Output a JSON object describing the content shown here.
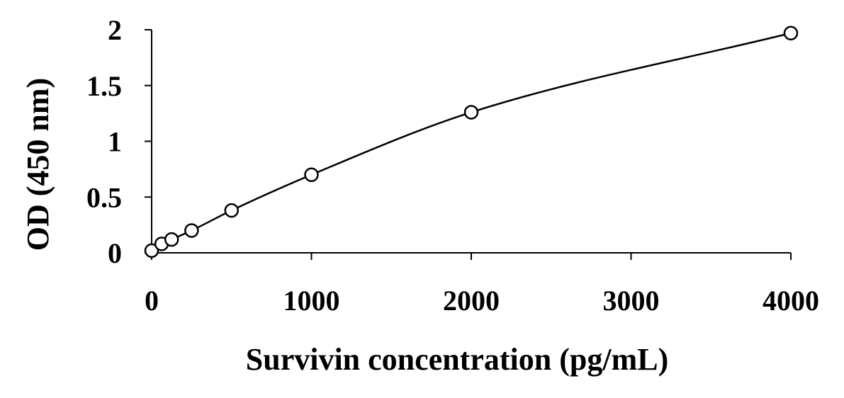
{
  "chart_data": {
    "type": "scatter",
    "title": "",
    "xlabel": "Survivin concentration (pg/mL)",
    "ylabel": "OD (450 nm)",
    "xlim": [
      0,
      4000
    ],
    "ylim": [
      0,
      2
    ],
    "x_ticks": [
      0,
      1000,
      2000,
      3000,
      4000
    ],
    "x_tick_labels": [
      "0",
      "1000",
      "2000",
      "3000",
      "4000"
    ],
    "y_ticks": [
      0,
      0.5,
      1,
      1.5,
      2
    ],
    "y_tick_labels": [
      "0",
      "0.5",
      "1",
      "1.5",
      "2"
    ],
    "grid": false,
    "legend": "none",
    "marker": "open-circle",
    "fit_line": "smooth-curve",
    "colors": {
      "line": "#000000",
      "marker": "#000000",
      "background": "#ffffff"
    },
    "series": [
      {
        "x": [
          0,
          62.5,
          125,
          250,
          500,
          1000,
          2000,
          4000
        ],
        "y": [
          0.02,
          0.08,
          0.12,
          0.2,
          0.38,
          0.7,
          1.26,
          1.97
        ]
      }
    ]
  }
}
